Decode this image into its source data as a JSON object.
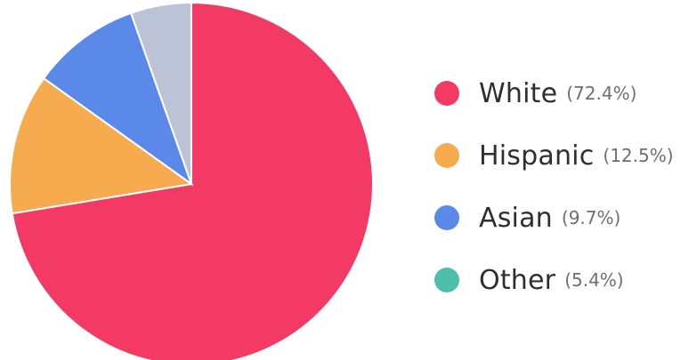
{
  "chart_data": {
    "type": "pie",
    "categories": [
      "White",
      "Hispanic",
      "Asian",
      "Other"
    ],
    "values": [
      72.4,
      12.5,
      9.7,
      5.4
    ],
    "value_labels": [
      "(72.4%)",
      "(12.5%)",
      "(9.7%)",
      "(5.4%)"
    ],
    "title": "",
    "legend_position": "right",
    "colors": [
      "#f23a65",
      "#f6ab4f",
      "#5b89ea",
      "#4fbfa9"
    ],
    "unlabeled_slice_color": "#bcc3d6"
  },
  "legend": {
    "items": [
      {
        "label": "White",
        "pct": "(72.4%)",
        "color": "#f23a65"
      },
      {
        "label": "Hispanic",
        "pct": "(12.5%)",
        "color": "#f6ab4f"
      },
      {
        "label": "Asian",
        "pct": "(9.7%)",
        "color": "#5b89ea"
      },
      {
        "label": "Other",
        "pct": "(5.4%)",
        "color": "#4fbfa9"
      }
    ]
  }
}
